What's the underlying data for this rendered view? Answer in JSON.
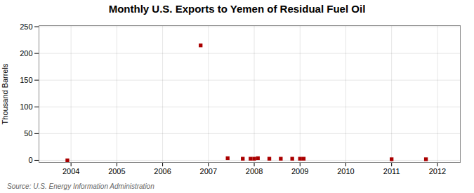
{
  "chart_data": {
    "type": "scatter",
    "title": "Monthly U.S. Exports to Yemen of Residual Fuel Oil",
    "ylabel": "Thousand Barrels",
    "annotations": [
      "Source: U.S. Energy Information Administration"
    ],
    "x": [
      2003.92,
      2006.83,
      2007.42,
      2007.75,
      2007.92,
      2008.0,
      2008.08,
      2008.33,
      2008.58,
      2008.83,
      2009.0,
      2009.08,
      2011.0,
      2011.75
    ],
    "values": [
      0,
      215,
      4,
      3,
      3,
      3,
      4,
      3,
      3,
      3,
      3,
      3,
      2,
      2
    ],
    "color": "#aa0000",
    "marker": "square",
    "xlim": [
      2003.3,
      2012.5
    ],
    "ylim": [
      -4,
      252
    ],
    "xticks": [
      2004,
      2005,
      2006,
      2007,
      2008,
      2009,
      2010,
      2011,
      2012
    ],
    "yticks": [
      0,
      50,
      100,
      150,
      200,
      250
    ],
    "grid": true
  }
}
